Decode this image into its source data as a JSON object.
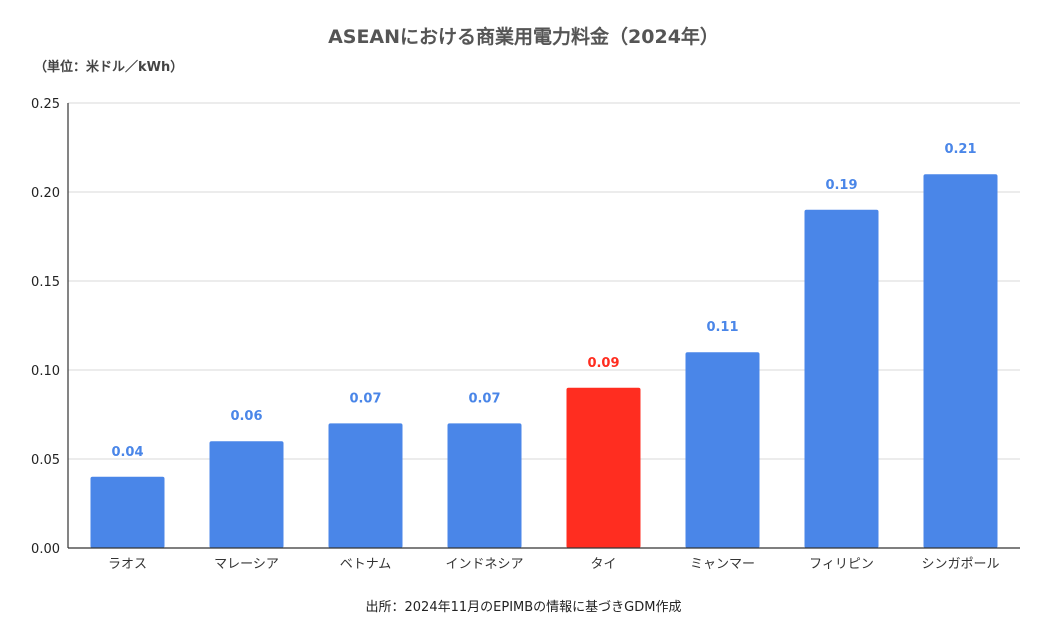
{
  "chart_data": {
    "type": "bar",
    "title": "ASEANにおける商業用電力料金（2024年）",
    "unit_label": "（単位：米ドル／kWh）",
    "source": "出所：2024年11月のEPIMBの情報に基づきGDM作成",
    "categories": [
      "ラオス",
      "マレーシア",
      "ベトナム",
      "インドネシア",
      "タイ",
      "ミャンマー",
      "フィリピン",
      "シンガポール"
    ],
    "values": [
      0.04,
      0.06,
      0.07,
      0.07,
      0.09,
      0.11,
      0.19,
      0.21
    ],
    "data_labels": [
      "0.04",
      "0.06",
      "0.07",
      "0.07",
      "0.09",
      "0.11",
      "0.19",
      "0.21"
    ],
    "highlight_index": 4,
    "ylim": [
      0,
      0.25
    ],
    "yticks": [
      "0.00",
      "0.05",
      "0.10",
      "0.15",
      "0.20",
      "0.25"
    ],
    "grid": true,
    "legend": "none",
    "colors": {
      "bar": "#4a86e8",
      "highlight": "#ff2d20",
      "label": "#4a86e8",
      "highlight_label": "#ff2d20",
      "grid": "#d9d9d9",
      "axis": "#333333"
    }
  }
}
